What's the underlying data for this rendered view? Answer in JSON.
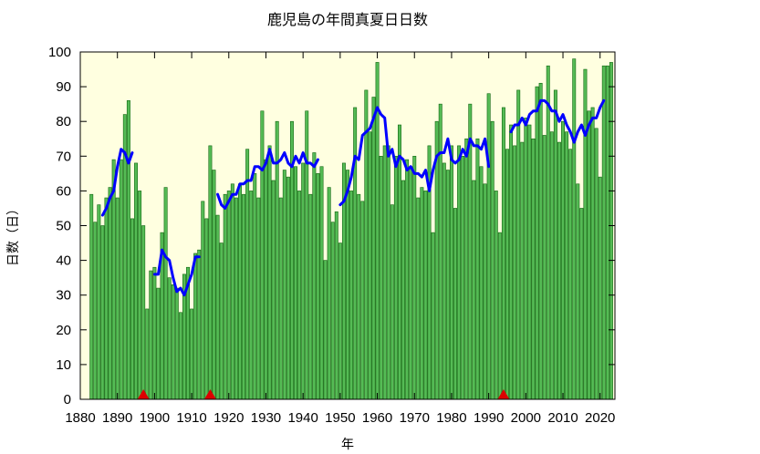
{
  "chart_data": {
    "type": "bar",
    "title": "鹿児島の年間真夏日日数",
    "xlabel": "年",
    "ylabel": "日数（日）",
    "xlim": [
      1880,
      2024
    ],
    "ylim": [
      0,
      100
    ],
    "xticks": [
      "1880",
      "1890",
      "1900",
      "1910",
      "1920",
      "1930",
      "1940",
      "1950",
      "1960",
      "1970",
      "1980",
      "1990",
      "2000",
      "2010",
      "2020"
    ],
    "yticks": [
      "0",
      "10",
      "20",
      "30",
      "40",
      "50",
      "60",
      "70",
      "80",
      "90",
      "100"
    ],
    "grid": false,
    "legend": "none",
    "colors": {
      "plot_bg": "#ffffe0",
      "bar_fill": "#55bb55",
      "bar_stroke": "#116611",
      "line": "#0000ff",
      "marker": "#dd0000"
    },
    "series": [
      {
        "type": "bar",
        "x": [
          1883,
          1884,
          1885,
          1886,
          1887,
          1888,
          1889,
          1890,
          1891,
          1892,
          1893,
          1894,
          1895,
          1896,
          1897,
          1898,
          1899,
          1900,
          1901,
          1902,
          1903,
          1904,
          1905,
          1906,
          1907,
          1908,
          1909,
          1910,
          1911,
          1912,
          1913,
          1914,
          1915,
          1916,
          1917,
          1918,
          1919,
          1920,
          1921,
          1922,
          1923,
          1924,
          1925,
          1926,
          1927,
          1928,
          1929,
          1930,
          1931,
          1932,
          1933,
          1934,
          1935,
          1936,
          1937,
          1938,
          1939,
          1940,
          1941,
          1942,
          1943,
          1944,
          1945,
          1946,
          1947,
          1948,
          1949,
          1950,
          1951,
          1952,
          1953,
          1954,
          1955,
          1956,
          1957,
          1958,
          1959,
          1960,
          1961,
          1962,
          1963,
          1964,
          1965,
          1966,
          1967,
          1968,
          1969,
          1970,
          1971,
          1972,
          1973,
          1974,
          1975,
          1976,
          1977,
          1978,
          1979,
          1980,
          1981,
          1982,
          1983,
          1984,
          1985,
          1986,
          1987,
          1988,
          1989,
          1990,
          1991,
          1992,
          1993,
          1994,
          1995,
          1996,
          1997,
          1998,
          1999,
          2000,
          2001,
          2002,
          2003,
          2004,
          2005,
          2006,
          2007,
          2008,
          2009,
          2010,
          2011,
          2012,
          2013,
          2014,
          2015,
          2016,
          2017,
          2018,
          2019,
          2020,
          2021,
          2022,
          2023
        ],
        "values": [
          59,
          51,
          56,
          50,
          58,
          61,
          69,
          58,
          69,
          82,
          86,
          52,
          68,
          60,
          50,
          26,
          37,
          38,
          32,
          48,
          61,
          35,
          33,
          32,
          25,
          36,
          38,
          26,
          42,
          43,
          57,
          52,
          73,
          66,
          53,
          45,
          59,
          60,
          62,
          58,
          62,
          59,
          72,
          60,
          65,
          58,
          83,
          69,
          73,
          63,
          80,
          58,
          66,
          64,
          80,
          67,
          60,
          68,
          83,
          59,
          71,
          65,
          67,
          40,
          61,
          51,
          54,
          45,
          68,
          66,
          60,
          84,
          59,
          57,
          89,
          77,
          87,
          97,
          70,
          73,
          73,
          56,
          70,
          79,
          63,
          69,
          67,
          70,
          58,
          61,
          60,
          73,
          48,
          80,
          85,
          68,
          66,
          73,
          55,
          73,
          70,
          75,
          85,
          63,
          75,
          67,
          62,
          88,
          80,
          60,
          48,
          84,
          72,
          79,
          73,
          89,
          74,
          81,
          79,
          75,
          90,
          91,
          76,
          96,
          77,
          89,
          74,
          80,
          77,
          72,
          98,
          62,
          55,
          95,
          83,
          84,
          78,
          64,
          96,
          96,
          97
        ]
      },
      {
        "type": "line",
        "name": "",
        "segments": [
          {
            "x": [
              1886,
              1887,
              1888,
              1889,
              1890,
              1891,
              1892,
              1893,
              1894
            ],
            "values": [
              53,
              55,
              58,
              60,
              67,
              72,
              71,
              68,
              71
            ]
          },
          {
            "x": [
              1900,
              1901,
              1902,
              1903,
              1904,
              1905,
              1906,
              1907,
              1908,
              1909,
              1910,
              1911,
              1912
            ],
            "values": [
              36,
              36,
              43,
              41,
              40,
              35,
              31,
              32,
              30,
              33,
              36,
              41,
              41
            ]
          },
          {
            "x": [
              1917,
              1918,
              1919,
              1920,
              1921,
              1922,
              1923,
              1924,
              1925,
              1926,
              1927,
              1928,
              1929,
              1930,
              1931,
              1932,
              1933,
              1934,
              1935,
              1936,
              1937,
              1938,
              1939,
              1940,
              1941,
              1942,
              1943,
              1944
            ],
            "values": [
              59,
              56,
              55,
              57,
              59,
              59,
              62,
              62,
              63,
              63,
              67,
              67,
              66,
              68,
              72,
              68,
              68,
              69,
              71,
              68,
              67,
              70,
              68,
              71,
              68,
              68,
              67,
              69
            ]
          },
          {
            "x": [
              1950,
              1951,
              1952,
              1953,
              1954,
              1955,
              1956,
              1957,
              1958,
              1959,
              1960,
              1961,
              1962,
              1963,
              1964,
              1965,
              1966,
              1967,
              1968,
              1969,
              1970,
              1971,
              1972,
              1973,
              1974,
              1975,
              1976,
              1977,
              1978,
              1979,
              1980,
              1981,
              1982,
              1983,
              1984,
              1985,
              1986,
              1987,
              1988,
              1989,
              1990
            ],
            "values": [
              56,
              57,
              60,
              64,
              70,
              69,
              76,
              77,
              78,
              81,
              84,
              82,
              81,
              70,
              72,
              67,
              70,
              69,
              66,
              67,
              65,
              65,
              64,
              66,
              60,
              66,
              70,
              71,
              71,
              75,
              69,
              68,
              69,
              72,
              70,
              75,
              73,
              73,
              72,
              75,
              67
            ]
          },
          {
            "x": [
              1996,
              1997,
              1998,
              1999,
              2000,
              2001,
              2002,
              2003,
              2004,
              2005,
              2006,
              2007,
              2008,
              2009,
              2010,
              2011,
              2012,
              2013,
              2014,
              2015,
              2016,
              2017,
              2018,
              2019,
              2020,
              2021
            ],
            "values": [
              77,
              79,
              79,
              81,
              79,
              82,
              83,
              83,
              86,
              86,
              85,
              83,
              83,
              80,
              82,
              79,
              77,
              74,
              77,
              79,
              76,
              79,
              81,
              81,
              84,
              86
            ]
          }
        ]
      }
    ],
    "markers": {
      "shape": "triangle",
      "x": [
        1897,
        1915,
        1994
      ],
      "y": 0
    }
  }
}
